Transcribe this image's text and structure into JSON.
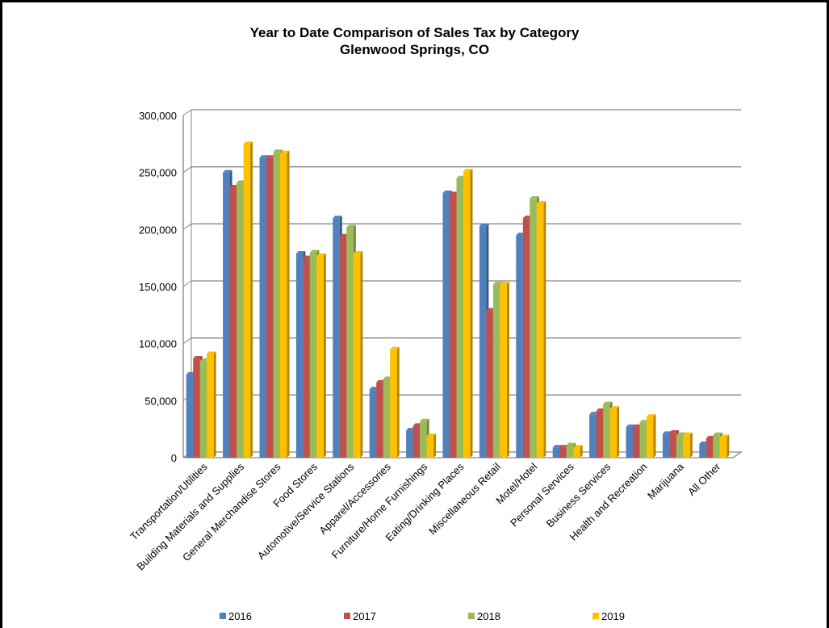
{
  "chart_data": {
    "type": "bar",
    "title": "Year to Date Comparison of Sales Tax by Category",
    "subtitle": "Glenwood Springs, CO",
    "xlabel": "",
    "ylabel": "",
    "ylim": [
      0,
      300000
    ],
    "yticks": [
      0,
      50000,
      100000,
      150000,
      200000,
      250000,
      300000
    ],
    "ytick_labels": [
      "0",
      "50,000",
      "100,000",
      "150,000",
      "200,000",
      "250,000",
      "300,000"
    ],
    "grid": true,
    "legend_position": "bottom",
    "categories": [
      "Transportation/Utilities",
      "Building Materials and Supplies",
      "General Merchandise Stores",
      "Food Stores",
      "Automotive/Service Stations",
      "Apparel/Accessories",
      "Furniture/Home Furnishings",
      "Eating/Drinking Places",
      "Miscellaneous Retail",
      "Motel/Hotel",
      "Personal Services",
      "Business Services",
      "Health and Recreation",
      "Marijuana",
      "All Other"
    ],
    "series": [
      {
        "name": "2016",
        "color": "#4F81BD",
        "values": [
          73000,
          250000,
          263000,
          179000,
          210000,
          60000,
          24000,
          232000,
          203000,
          195000,
          9000,
          38000,
          27000,
          21000,
          12000
        ]
      },
      {
        "name": "2017",
        "color": "#C0504D",
        "values": [
          87000,
          237000,
          263000,
          175000,
          194000,
          66000,
          28000,
          231000,
          129000,
          210000,
          9000,
          41000,
          27000,
          22000,
          17000
        ]
      },
      {
        "name": "2018",
        "color": "#9BBB59",
        "values": [
          85000,
          241000,
          268000,
          180000,
          202000,
          69000,
          32000,
          245000,
          152000,
          227000,
          11000,
          47000,
          31000,
          20000,
          20000
        ]
      },
      {
        "name": "2019",
        "color": "#FFC000",
        "values": [
          91000,
          275000,
          267000,
          177000,
          179000,
          95000,
          19000,
          251000,
          152000,
          223000,
          9000,
          43000,
          36000,
          20000,
          18000
        ]
      }
    ]
  }
}
